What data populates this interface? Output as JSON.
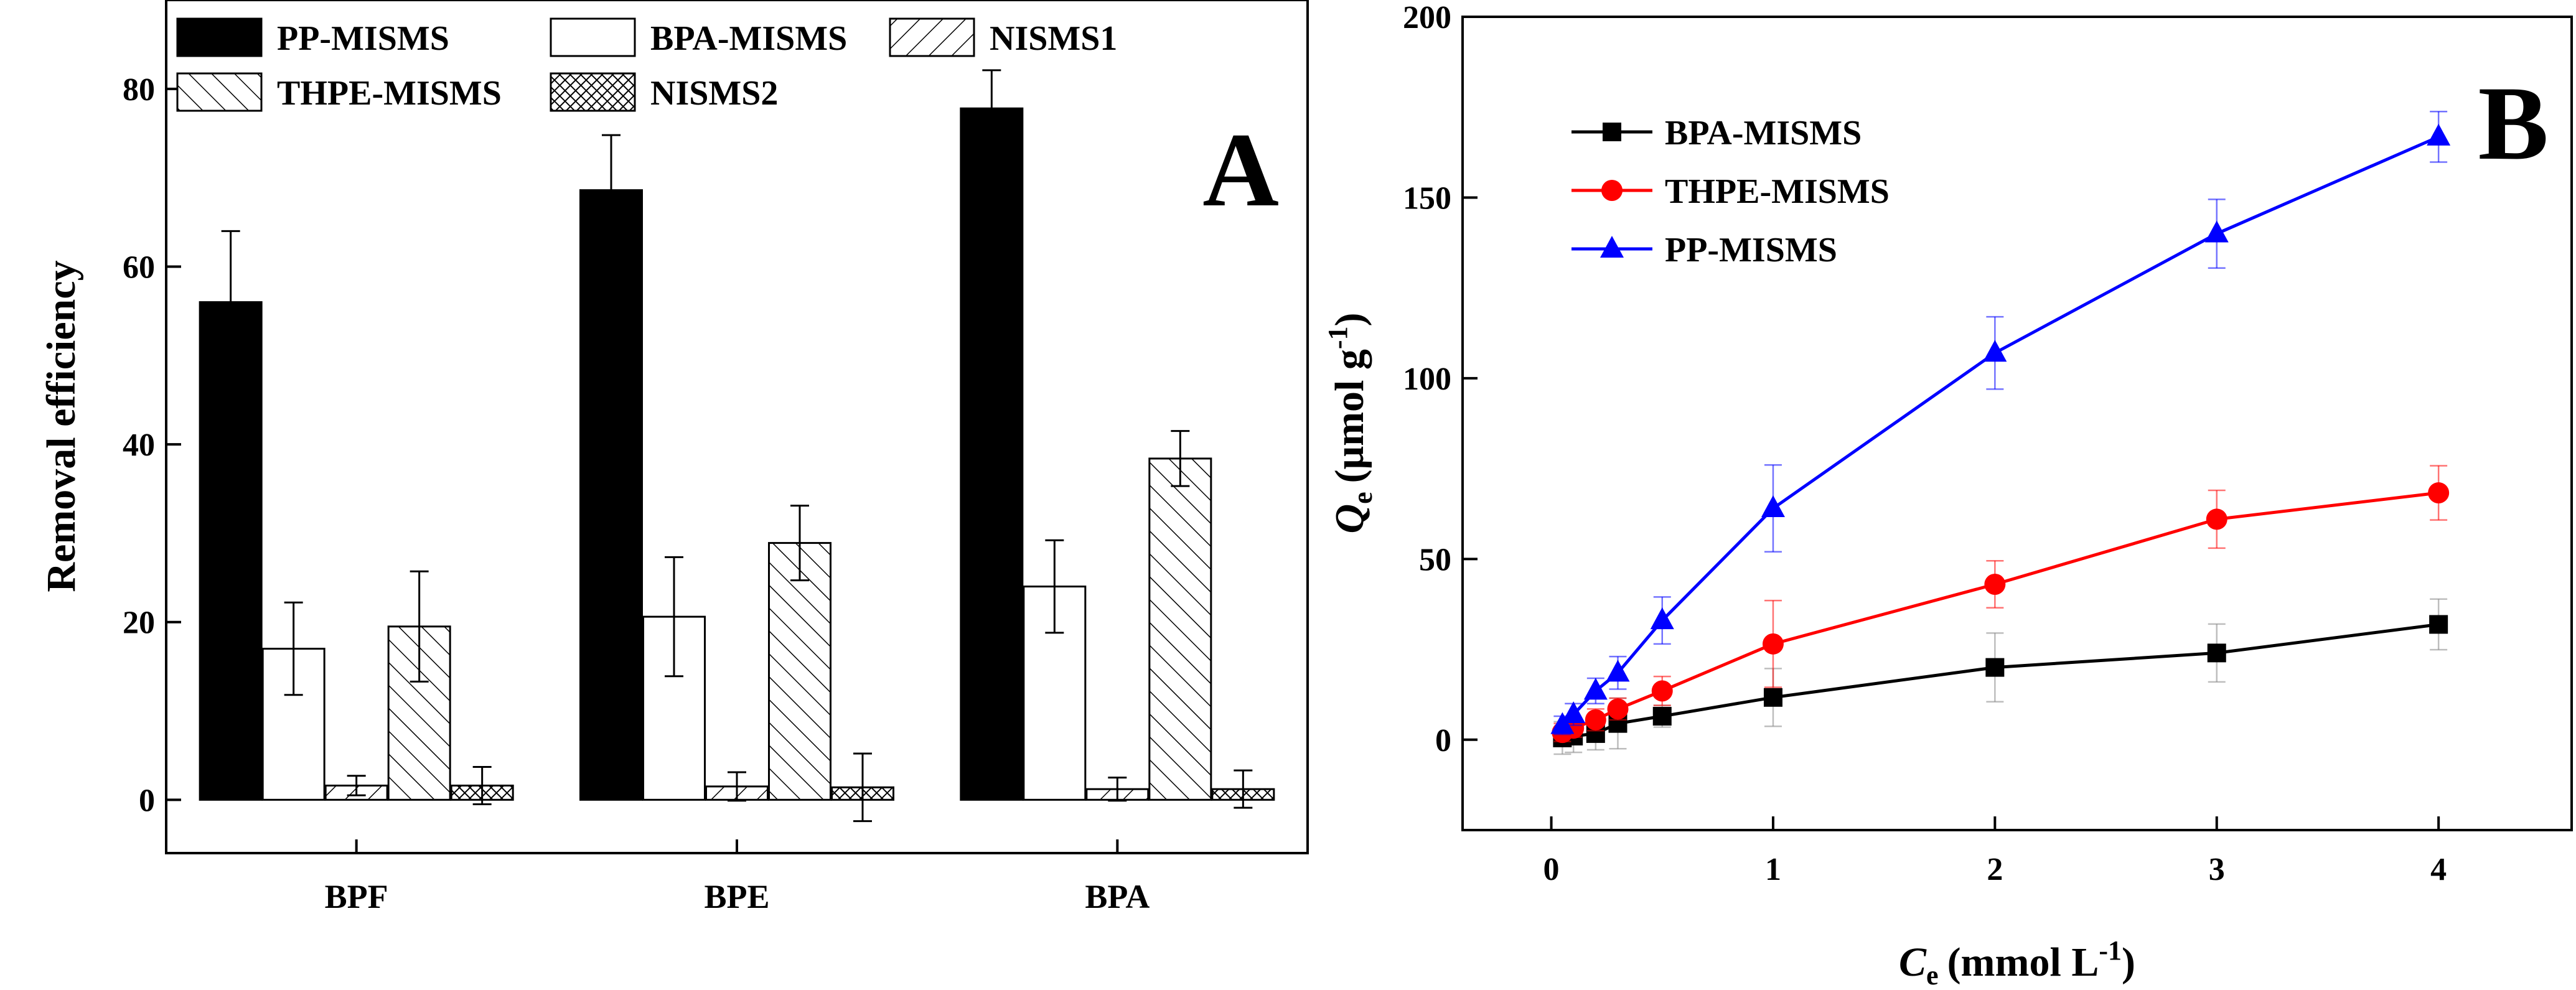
{
  "colors": {
    "axis": "#000000",
    "red": "#ff0000",
    "blue": "#0000ff",
    "black": "#000000",
    "bar_fill_white": "#ffffff"
  },
  "chart_data": [
    {
      "type": "bar",
      "panel_label": "A",
      "ylabel": "Removal efficiency",
      "xlabel": "",
      "ylim": [
        -6,
        90
      ],
      "yticks": [
        0,
        20,
        40,
        60,
        80
      ],
      "categories": [
        "BPF",
        "BPE",
        "BPA"
      ],
      "legend_position": "top",
      "series": [
        {
          "name": "PP-MISMS",
          "pattern": "solid",
          "values": [
            56.0,
            68.6,
            77.8
          ],
          "errors": [
            8.0,
            6.2,
            4.3
          ]
        },
        {
          "name": "BPA-MISMS",
          "pattern": "hollow",
          "values": [
            17.0,
            20.6,
            24.0
          ],
          "errors": [
            5.2,
            6.7,
            5.2
          ]
        },
        {
          "name": "NISMS1",
          "pattern": "forward-hatch",
          "values": [
            1.6,
            1.5,
            1.2
          ],
          "errors": [
            1.1,
            1.6,
            1.3
          ]
        },
        {
          "name": "THPE-MISMS",
          "pattern": "back-hatch",
          "values": [
            19.5,
            28.9,
            38.4
          ],
          "errors": [
            6.2,
            4.2,
            3.1
          ]
        },
        {
          "name": "NISMS2",
          "pattern": "crosshatch",
          "values": [
            1.6,
            1.4,
            1.2
          ],
          "errors": [
            2.1,
            3.8,
            2.1
          ]
        }
      ]
    },
    {
      "type": "line",
      "panel_label": "B",
      "ylabel_main": "Q",
      "ylabel_sub": "e",
      "ylabel_unit": "(μmol g",
      "ylabel_sup": "-1",
      "ylabel_close": ")",
      "xlabel_main": "C",
      "xlabel_sub": "e",
      "xlabel_unit": "(mmol L",
      "xlabel_sup": "-1",
      "xlabel_close": ")",
      "xlim": [
        -0.4,
        4.6
      ],
      "ylim": [
        -25,
        200
      ],
      "xticks": [
        0,
        1,
        2,
        3,
        4
      ],
      "yticks": [
        0,
        50,
        100,
        150,
        200
      ],
      "legend_position": "top-left",
      "x": [
        0.05,
        0.1,
        0.2,
        0.3,
        0.5,
        1,
        2,
        3,
        4
      ],
      "series": [
        {
          "name": "BPA-MISMS",
          "color": "#000000",
          "marker": "square",
          "values": [
            0.5,
            1.0,
            1.7,
            4.5,
            6.5,
            11.7,
            20.0,
            24.0,
            31.9
          ],
          "errors": [
            4.5,
            4.5,
            4.5,
            7.0,
            3.0,
            8.0,
            9.5,
            8.0,
            7.0
          ]
        },
        {
          "name": "THPE-MISMS",
          "color": "#ff0000",
          "marker": "circle",
          "values": [
            2.0,
            3.2,
            5.5,
            8.5,
            13.5,
            26.5,
            43.0,
            61.0,
            68.3
          ],
          "errors": [
            2.5,
            2.5,
            3.0,
            3.0,
            4.0,
            12.0,
            6.5,
            8.0,
            7.5
          ]
        },
        {
          "name": "PP-MISMS",
          "color": "#0000ff",
          "marker": "triangle",
          "values": [
            4.0,
            7.0,
            13.5,
            18.5,
            33.0,
            64.0,
            107.0,
            140.0,
            166.8
          ],
          "errors": [
            2.5,
            3.0,
            3.5,
            4.5,
            6.5,
            12.0,
            10.0,
            9.5,
            7.0
          ]
        }
      ]
    }
  ]
}
